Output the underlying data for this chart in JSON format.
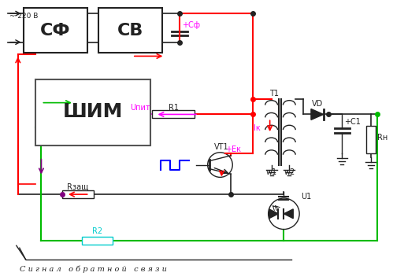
{
  "bg_color": "#ffffff",
  "SF_label": "СФ",
  "SV_label": "СВ",
  "SHIM_label": "ШИМ",
  "label_220": "~ 220 В",
  "Cf_label": "+Сф",
  "R1_label": "R1",
  "Upit_label": "Uпит",
  "Ik_label": "Iк",
  "Ek_label": "+Eк",
  "T1_label": "T1",
  "w1_label": "w1",
  "w2_label": "w2",
  "VD_label": "VD",
  "C1_label": "+C1",
  "Rn_label": "Rн",
  "VT1_label": "VT1",
  "Rzash_label": "Rзащ",
  "U1_label": "U1",
  "R2_label": "R2",
  "feedback_label": "С и г н а л   о б р а т н о й   с в я з и",
  "RED": "#ff0000",
  "GREEN": "#00bb00",
  "MAG": "#ff00ff",
  "BLU": "#0000ff",
  "CYA": "#00cccc",
  "BLK": "#222222",
  "PUR": "#800080"
}
